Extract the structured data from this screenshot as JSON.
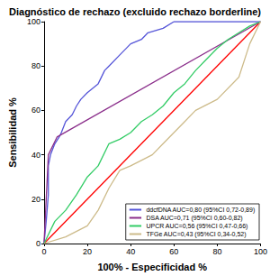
{
  "chart_data": {
    "type": "line",
    "title": "Diagnóstico de rechazo (excluido rechazo borderline)",
    "x_label": "100% - Especificidad %",
    "y_label": "Sensibilidad %",
    "xlim": [
      0,
      100
    ],
    "ylim": [
      0,
      100
    ],
    "xticks": [
      0,
      20,
      40,
      60,
      80,
      100
    ],
    "yticks": [
      0,
      20,
      40,
      60,
      80,
      100
    ],
    "grid": false,
    "legend": "lower right",
    "series": [
      {
        "name": "ddcfDNA AUC=0,80 (95%CI 0,72-0,89)",
        "color": "#5555d8",
        "x": [
          0,
          1,
          2,
          2,
          3,
          5,
          7,
          8,
          10,
          13,
          15,
          17,
          20,
          25,
          28,
          30,
          35,
          40,
          45,
          48,
          55,
          60,
          100
        ],
        "values": [
          0,
          10,
          22,
          35,
          40,
          45,
          48,
          50,
          55,
          58,
          62,
          65,
          68,
          72,
          78,
          80,
          85,
          90,
          92,
          95,
          97,
          100,
          100
        ]
      },
      {
        "name": "DSA AUC=0,71 (95%CI 0,60-0,82)",
        "color": "#8b2f8b",
        "x": [
          0,
          2,
          6,
          100
        ],
        "values": [
          0,
          40,
          48,
          100
        ]
      },
      {
        "name": "UPCR AUC=0,56 (95%CI 0,47-0,66)",
        "color": "#33cc66",
        "x": [
          0,
          5,
          10,
          15,
          20,
          25,
          30,
          35,
          40,
          45,
          50,
          55,
          60,
          65,
          70,
          75,
          80,
          85,
          90,
          95,
          100
        ],
        "values": [
          0,
          10,
          15,
          22,
          30,
          35,
          45,
          47,
          50,
          55,
          58,
          62,
          68,
          72,
          78,
          83,
          88,
          92,
          95,
          98,
          100
        ]
      },
      {
        "name": "TFGe AUC=0,43 (95%CI 0,34-0,52)",
        "color": "#cdbb8a",
        "x": [
          0,
          10,
          20,
          25,
          30,
          35,
          40,
          50,
          55,
          60,
          65,
          70,
          80,
          90,
          95,
          100
        ],
        "values": [
          0,
          3,
          8,
          15,
          25,
          33,
          35,
          40,
          45,
          50,
          55,
          60,
          65,
          75,
          90,
          100
        ]
      },
      {
        "color": "#ff0000",
        "x": [
          0,
          100
        ],
        "values": [
          0,
          100
        ]
      }
    ]
  }
}
